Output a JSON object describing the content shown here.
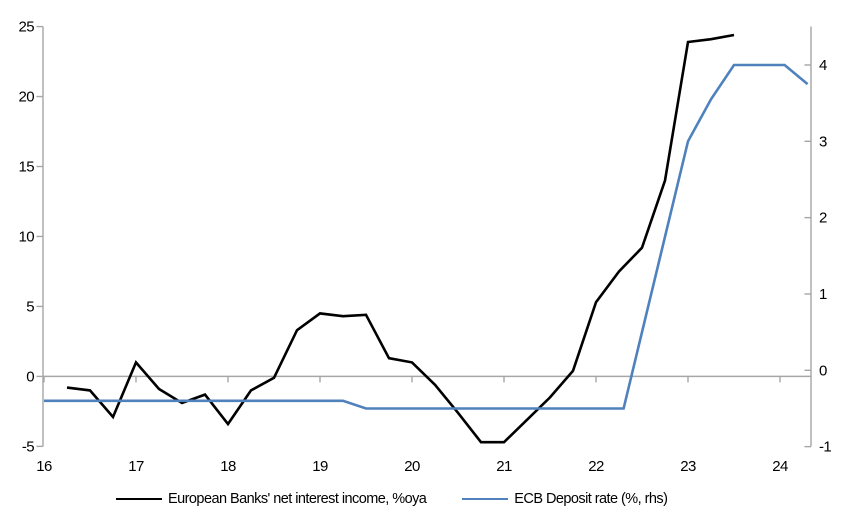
{
  "chart_data": {
    "type": "line",
    "title": "",
    "xlabel": "",
    "ylabel_left": "",
    "ylabel_right": "",
    "grid": "zero-line-only",
    "legend_position": "bottom",
    "axis_color": "#a6a6a6",
    "x_axis": {
      "tick_values": [
        16,
        17,
        18,
        19,
        20,
        21,
        22,
        23,
        24
      ],
      "range": [
        16,
        24.35
      ]
    },
    "left_axis": {
      "tick_values": [
        25,
        20,
        15,
        10,
        5,
        0,
        -5
      ],
      "range": [
        -5,
        25
      ]
    },
    "right_axis": {
      "tick_values": [
        4,
        3,
        2,
        1,
        0,
        -1
      ],
      "range": [
        -1,
        4.5
      ]
    },
    "series": [
      {
        "name": "European Banks' net interest income, %oya",
        "axis": "left",
        "color": "#000000",
        "x_start": 16.25,
        "x_step": 0.25,
        "values": [
          -0.8,
          -1.0,
          -2.9,
          1.0,
          -0.9,
          -1.9,
          -1.3,
          -3.4,
          -1.0,
          -0.1,
          3.3,
          4.5,
          4.3,
          4.4,
          1.3,
          1.0,
          -0.6,
          -2.6,
          -4.7,
          -4.7,
          -3.1,
          -1.5,
          0.4,
          5.3,
          7.5,
          9.2,
          14.0,
          23.9,
          24.1,
          24.4
        ]
      },
      {
        "name": "ECB Deposit rate (%, rhs)",
        "axis": "right",
        "color": "#4f81bd",
        "points": [
          [
            16.0,
            -0.4
          ],
          [
            19.25,
            -0.4
          ],
          [
            19.5,
            -0.5
          ],
          [
            22.3,
            -0.5
          ],
          [
            23.0,
            3.0
          ],
          [
            23.25,
            3.55
          ],
          [
            23.5,
            4.0
          ],
          [
            24.05,
            4.0
          ],
          [
            24.3,
            3.75
          ]
        ]
      }
    ]
  }
}
